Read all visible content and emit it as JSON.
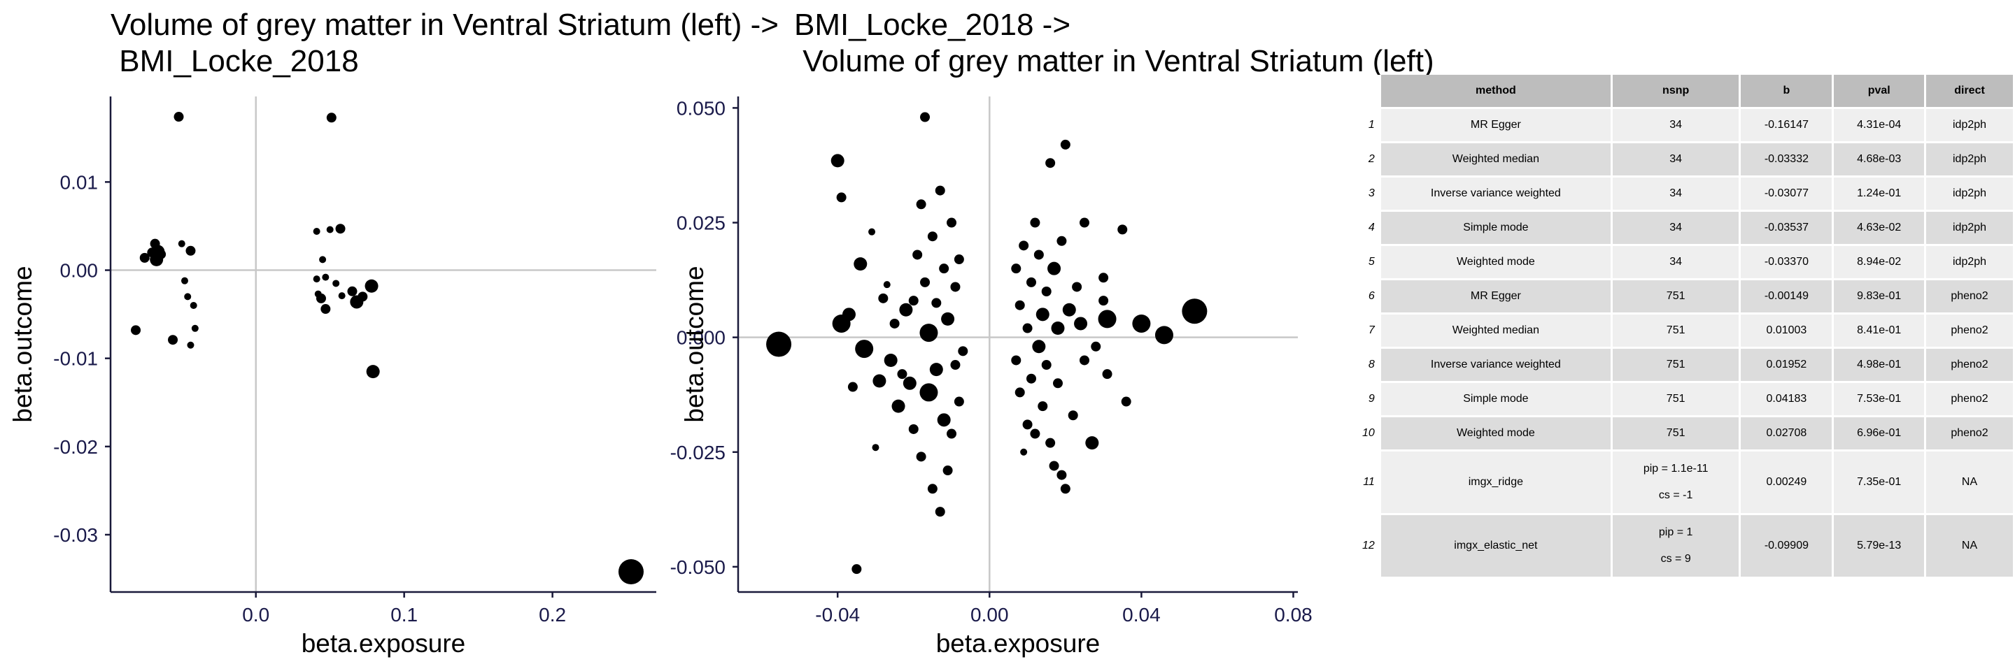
{
  "chart_data": [
    {
      "type": "scatter",
      "title": "Volume of grey matter in Ventral Striatum (left) ->\n BMI_Locke_2018",
      "xlabel": "beta.exposure",
      "ylabel": "beta.outcome",
      "xlim": [
        -0.098,
        0.27
      ],
      "ylim": [
        -0.0365,
        0.0197
      ],
      "x_ticks": [
        0.0,
        0.1,
        0.2
      ],
      "x_tick_labels": [
        "0.0",
        "0.1",
        "0.2"
      ],
      "y_ticks": [
        0.01,
        0.0,
        -0.01,
        -0.02,
        -0.03
      ],
      "y_tick_labels": [
        "0.01",
        "0.00",
        "-0.01",
        "-0.02",
        "-0.03"
      ],
      "grid": false,
      "reference_lines": {
        "x": 0,
        "y": 0
      },
      "points": [
        {
          "x": -0.081,
          "y": -0.0068,
          "s": 1
        },
        {
          "x": -0.075,
          "y": 0.0014,
          "s": 1
        },
        {
          "x": -0.07,
          "y": 0.002,
          "s": 1
        },
        {
          "x": -0.068,
          "y": 0.003,
          "s": 1
        },
        {
          "x": -0.067,
          "y": 0.0012,
          "s": 2
        },
        {
          "x": -0.066,
          "y": 0.0021,
          "s": 2
        },
        {
          "x": -0.064,
          "y": 0.0018,
          "s": 1
        },
        {
          "x": -0.056,
          "y": -0.0079,
          "s": 1
        },
        {
          "x": -0.052,
          "y": 0.0174,
          "s": 1
        },
        {
          "x": -0.05,
          "y": 0.003,
          "s": 0
        },
        {
          "x": -0.048,
          "y": -0.0012,
          "s": 0
        },
        {
          "x": -0.046,
          "y": -0.003,
          "s": 0
        },
        {
          "x": -0.044,
          "y": -0.0085,
          "s": 0
        },
        {
          "x": -0.044,
          "y": 0.0022,
          "s": 1
        },
        {
          "x": -0.042,
          "y": -0.004,
          "s": 0
        },
        {
          "x": -0.041,
          "y": -0.0066,
          "s": 0
        },
        {
          "x": 0.041,
          "y": 0.0044,
          "s": 0
        },
        {
          "x": 0.041,
          "y": -0.001,
          "s": 0
        },
        {
          "x": 0.042,
          "y": -0.0027,
          "s": 0
        },
        {
          "x": 0.044,
          "y": -0.0032,
          "s": 1
        },
        {
          "x": 0.045,
          "y": 0.0012,
          "s": 0
        },
        {
          "x": 0.047,
          "y": -0.0008,
          "s": 0
        },
        {
          "x": 0.047,
          "y": -0.0044,
          "s": 1
        },
        {
          "x": 0.05,
          "y": 0.0046,
          "s": 0
        },
        {
          "x": 0.051,
          "y": 0.0173,
          "s": 1
        },
        {
          "x": 0.054,
          "y": -0.0015,
          "s": 0
        },
        {
          "x": 0.057,
          "y": 0.0047,
          "s": 1
        },
        {
          "x": 0.058,
          "y": -0.0029,
          "s": 0
        },
        {
          "x": 0.065,
          "y": -0.0024,
          "s": 1
        },
        {
          "x": 0.068,
          "y": -0.0036,
          "s": 2
        },
        {
          "x": 0.072,
          "y": -0.003,
          "s": 1
        },
        {
          "x": 0.078,
          "y": -0.0018,
          "s": 2
        },
        {
          "x": 0.079,
          "y": -0.0115,
          "s": 2
        },
        {
          "x": 0.253,
          "y": -0.0342,
          "s": 4
        }
      ]
    },
    {
      "type": "scatter",
      "title": "BMI_Locke_2018 ->\n Volume of grey matter in Ventral Striatum (left)",
      "xlabel": "beta.exposure",
      "ylabel": "beta.outcome",
      "xlim": [
        -0.0662,
        0.0812
      ],
      "ylim": [
        -0.0555,
        0.0525
      ],
      "x_ticks": [
        -0.04,
        0.0,
        0.04,
        0.08
      ],
      "x_tick_labels": [
        "-0.04",
        "0.00",
        "0.04",
        "0.08"
      ],
      "y_ticks": [
        0.05,
        0.025,
        0.0,
        -0.025,
        -0.05
      ],
      "y_tick_labels": [
        "0.050",
        "0.025",
        "0.000",
        "-0.025",
        "-0.050"
      ],
      "grid": false,
      "reference_lines": {
        "x": 0,
        "y": 0
      },
      "points": [
        {
          "x": -0.0555,
          "y": -0.0015,
          "s": 4
        },
        {
          "x": -0.04,
          "y": 0.0385,
          "s": 2
        },
        {
          "x": -0.039,
          "y": 0.0305,
          "s": 1
        },
        {
          "x": -0.039,
          "y": 0.003,
          "s": 3
        },
        {
          "x": -0.037,
          "y": 0.005,
          "s": 2
        },
        {
          "x": -0.036,
          "y": -0.0108,
          "s": 1
        },
        {
          "x": -0.035,
          "y": -0.0505,
          "s": 1
        },
        {
          "x": -0.034,
          "y": 0.016,
          "s": 2
        },
        {
          "x": -0.033,
          "y": -0.0025,
          "s": 3
        },
        {
          "x": -0.031,
          "y": 0.023,
          "s": 0
        },
        {
          "x": -0.03,
          "y": -0.024,
          "s": 0
        },
        {
          "x": -0.029,
          "y": -0.0095,
          "s": 2
        },
        {
          "x": -0.028,
          "y": 0.0085,
          "s": 1
        },
        {
          "x": -0.027,
          "y": 0.0115,
          "s": 0
        },
        {
          "x": -0.026,
          "y": -0.005,
          "s": 2
        },
        {
          "x": -0.025,
          "y": 0.003,
          "s": 1
        },
        {
          "x": -0.024,
          "y": -0.015,
          "s": 2
        },
        {
          "x": -0.023,
          "y": -0.008,
          "s": 1
        },
        {
          "x": -0.022,
          "y": 0.006,
          "s": 2
        },
        {
          "x": -0.021,
          "y": -0.01,
          "s": 2
        },
        {
          "x": -0.02,
          "y": 0.008,
          "s": 1
        },
        {
          "x": -0.02,
          "y": -0.02,
          "s": 1
        },
        {
          "x": -0.019,
          "y": 0.018,
          "s": 1
        },
        {
          "x": -0.018,
          "y": 0.029,
          "s": 1
        },
        {
          "x": -0.018,
          "y": -0.026,
          "s": 1
        },
        {
          "x": -0.017,
          "y": 0.048,
          "s": 1
        },
        {
          "x": -0.017,
          "y": 0.012,
          "s": 1
        },
        {
          "x": -0.016,
          "y": -0.012,
          "s": 3
        },
        {
          "x": -0.016,
          "y": 0.001,
          "s": 3
        },
        {
          "x": -0.015,
          "y": -0.033,
          "s": 1
        },
        {
          "x": -0.015,
          "y": 0.022,
          "s": 1
        },
        {
          "x": -0.014,
          "y": -0.007,
          "s": 2
        },
        {
          "x": -0.014,
          "y": 0.0075,
          "s": 1
        },
        {
          "x": -0.013,
          "y": -0.038,
          "s": 1
        },
        {
          "x": -0.013,
          "y": 0.032,
          "s": 1
        },
        {
          "x": -0.012,
          "y": -0.018,
          "s": 2
        },
        {
          "x": -0.012,
          "y": 0.015,
          "s": 1
        },
        {
          "x": -0.011,
          "y": -0.029,
          "s": 1
        },
        {
          "x": -0.011,
          "y": 0.004,
          "s": 2
        },
        {
          "x": -0.01,
          "y": -0.021,
          "s": 1
        },
        {
          "x": -0.01,
          "y": 0.025,
          "s": 1
        },
        {
          "x": -0.009,
          "y": -0.006,
          "s": 1
        },
        {
          "x": -0.009,
          "y": 0.011,
          "s": 1
        },
        {
          "x": -0.008,
          "y": 0.017,
          "s": 1
        },
        {
          "x": -0.008,
          "y": -0.014,
          "s": 1
        },
        {
          "x": -0.007,
          "y": -0.003,
          "s": 1
        },
        {
          "x": 0.007,
          "y": 0.015,
          "s": 1
        },
        {
          "x": 0.007,
          "y": -0.005,
          "s": 1
        },
        {
          "x": 0.008,
          "y": -0.012,
          "s": 1
        },
        {
          "x": 0.008,
          "y": 0.007,
          "s": 1
        },
        {
          "x": 0.009,
          "y": -0.025,
          "s": 0
        },
        {
          "x": 0.009,
          "y": 0.02,
          "s": 1
        },
        {
          "x": 0.01,
          "y": -0.019,
          "s": 1
        },
        {
          "x": 0.01,
          "y": 0.002,
          "s": 1
        },
        {
          "x": 0.011,
          "y": 0.012,
          "s": 1
        },
        {
          "x": 0.011,
          "y": -0.009,
          "s": 1
        },
        {
          "x": 0.012,
          "y": -0.021,
          "s": 1
        },
        {
          "x": 0.012,
          "y": 0.025,
          "s": 1
        },
        {
          "x": 0.013,
          "y": -0.002,
          "s": 2
        },
        {
          "x": 0.013,
          "y": 0.018,
          "s": 1
        },
        {
          "x": 0.014,
          "y": -0.015,
          "s": 1
        },
        {
          "x": 0.014,
          "y": 0.005,
          "s": 2
        },
        {
          "x": 0.015,
          "y": 0.01,
          "s": 1
        },
        {
          "x": 0.015,
          "y": -0.006,
          "s": 1
        },
        {
          "x": 0.016,
          "y": -0.023,
          "s": 1
        },
        {
          "x": 0.016,
          "y": 0.038,
          "s": 1
        },
        {
          "x": 0.017,
          "y": 0.015,
          "s": 2
        },
        {
          "x": 0.017,
          "y": -0.028,
          "s": 1
        },
        {
          "x": 0.018,
          "y": 0.002,
          "s": 2
        },
        {
          "x": 0.018,
          "y": -0.01,
          "s": 1
        },
        {
          "x": 0.019,
          "y": 0.021,
          "s": 1
        },
        {
          "x": 0.019,
          "y": -0.03,
          "s": 1
        },
        {
          "x": 0.02,
          "y": -0.033,
          "s": 1
        },
        {
          "x": 0.02,
          "y": 0.042,
          "s": 1
        },
        {
          "x": 0.021,
          "y": 0.006,
          "s": 2
        },
        {
          "x": 0.022,
          "y": -0.017,
          "s": 1
        },
        {
          "x": 0.023,
          "y": 0.011,
          "s": 1
        },
        {
          "x": 0.024,
          "y": 0.003,
          "s": 2
        },
        {
          "x": 0.025,
          "y": 0.025,
          "s": 1
        },
        {
          "x": 0.025,
          "y": -0.005,
          "s": 1
        },
        {
          "x": 0.027,
          "y": -0.023,
          "s": 2
        },
        {
          "x": 0.028,
          "y": -0.002,
          "s": 1
        },
        {
          "x": 0.03,
          "y": 0.013,
          "s": 1
        },
        {
          "x": 0.03,
          "y": 0.008,
          "s": 1
        },
        {
          "x": 0.031,
          "y": 0.004,
          "s": 3
        },
        {
          "x": 0.031,
          "y": -0.008,
          "s": 1
        },
        {
          "x": 0.035,
          "y": 0.0235,
          "s": 1
        },
        {
          "x": 0.036,
          "y": -0.014,
          "s": 1
        },
        {
          "x": 0.04,
          "y": 0.003,
          "s": 3
        },
        {
          "x": 0.046,
          "y": 0.0005,
          "s": 3
        },
        {
          "x": 0.054,
          "y": 0.0057,
          "s": 4
        }
      ]
    },
    {
      "type": "table",
      "columns": [
        "",
        "method",
        "nsnp",
        "b",
        "pval",
        "direct"
      ],
      "rows": [
        {
          "rn": "1",
          "method": "MR Egger",
          "nsnp": "34",
          "b": "-0.16147",
          "pval": "4.31e-04",
          "direct": "idp2ph"
        },
        {
          "rn": "2",
          "method": "Weighted median",
          "nsnp": "34",
          "b": "-0.03332",
          "pval": "4.68e-03",
          "direct": "idp2ph"
        },
        {
          "rn": "3",
          "method": "Inverse variance weighted",
          "nsnp": "34",
          "b": "-0.03077",
          "pval": "1.24e-01",
          "direct": "idp2ph"
        },
        {
          "rn": "4",
          "method": "Simple mode",
          "nsnp": "34",
          "b": "-0.03537",
          "pval": "4.63e-02",
          "direct": "idp2ph"
        },
        {
          "rn": "5",
          "method": "Weighted mode",
          "nsnp": "34",
          "b": "-0.03370",
          "pval": "8.94e-02",
          "direct": "idp2ph"
        },
        {
          "rn": "6",
          "method": "MR Egger",
          "nsnp": "751",
          "b": "-0.00149",
          "pval": "9.83e-01",
          "direct": "pheno2"
        },
        {
          "rn": "7",
          "method": "Weighted median",
          "nsnp": "751",
          "b": "0.01003",
          "pval": "8.41e-01",
          "direct": "pheno2"
        },
        {
          "rn": "8",
          "method": "Inverse variance weighted",
          "nsnp": "751",
          "b": "0.01952",
          "pval": "4.98e-01",
          "direct": "pheno2"
        },
        {
          "rn": "9",
          "method": "Simple mode",
          "nsnp": "751",
          "b": "0.04183",
          "pval": "7.53e-01",
          "direct": "pheno2"
        },
        {
          "rn": "10",
          "method": "Weighted mode",
          "nsnp": "751",
          "b": "0.02708",
          "pval": "6.96e-01",
          "direct": "pheno2"
        },
        {
          "rn": "11",
          "method": "imgx_ridge",
          "nsnp": "pip = 1.1e-11\ncs = -1",
          "b": "0.00249",
          "pval": "7.35e-01",
          "direct": "NA"
        },
        {
          "rn": "12",
          "method": "imgx_elastic_net",
          "nsnp": "pip = 1\ncs = 9",
          "b": "-0.09909",
          "pval": "5.79e-13",
          "direct": "NA"
        }
      ]
    }
  ]
}
